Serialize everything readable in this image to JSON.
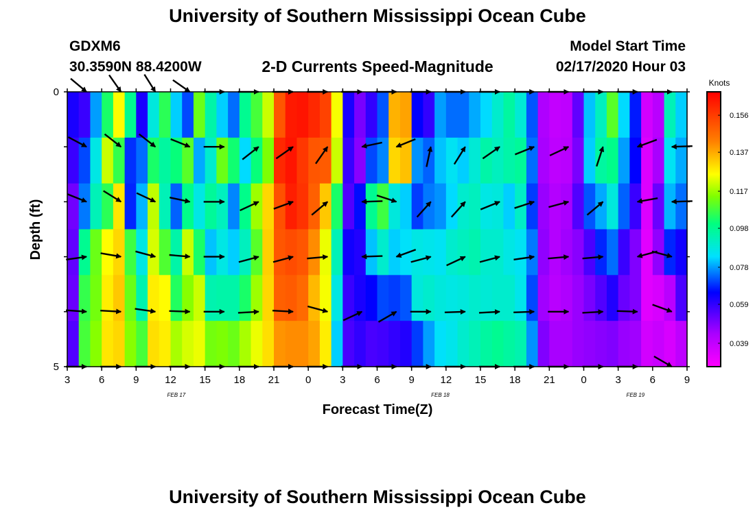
{
  "page": {
    "title_top": "University of Southern Mississippi Ocean Cube",
    "title_bottom": "University of Southern Mississippi Ocean Cube",
    "station_id": "GDXM6",
    "station_coords": "30.3590N 88.4200W",
    "product_title": "2-D Currents Speed-Magnitude",
    "model_start_label": "Model Start Time",
    "model_start_value": "02/17/2020 Hour 03"
  },
  "chart_data": {
    "type": "heatmap",
    "title": "2-D Currents Speed-Magnitude",
    "xlabel": "Forecast Time(Z)",
    "ylabel": "Depth (ft)",
    "x_ticks": [
      "3",
      "6",
      "9",
      "12",
      "15",
      "18",
      "21",
      "0",
      "3",
      "6",
      "9",
      "12",
      "15",
      "18",
      "21",
      "0",
      "3",
      "6",
      "9"
    ],
    "x_range_hours": [
      0,
      54
    ],
    "date_labels": [
      {
        "text": "FEB 17",
        "hour": 9.5
      },
      {
        "text": "FEB 18",
        "hour": 32.5
      },
      {
        "text": "FEB 19",
        "hour": 49.5
      }
    ],
    "y_tick_labels": [
      "0",
      "5"
    ],
    "ylim": [
      0,
      5
    ],
    "depth_bands": 5,
    "colorbar": {
      "label": "Knots",
      "ticks": [
        "0.156",
        "0.137",
        "0.117",
        "0.098",
        "0.078",
        "0.059",
        "0.039"
      ],
      "tick_values": [
        0.156,
        0.137,
        0.117,
        0.098,
        0.078,
        0.059,
        0.039
      ],
      "range": [
        0.027,
        0.168
      ]
    },
    "speed_rows": [
      [
        0.062,
        0.058,
        0.078,
        0.103,
        0.126,
        0.098,
        0.062,
        0.088,
        0.105,
        0.082,
        0.071,
        0.112,
        0.095,
        0.082,
        0.074,
        0.098,
        0.108,
        0.121,
        0.151,
        0.163,
        0.164,
        0.16,
        0.155,
        0.125,
        0.062,
        0.05,
        0.059,
        0.072,
        0.136,
        0.138,
        0.065,
        0.059,
        0.078,
        0.074,
        0.074,
        0.079,
        0.083,
        0.09,
        0.096,
        0.089,
        0.072,
        0.043,
        0.039,
        0.04,
        0.053,
        0.081,
        0.092,
        0.11,
        0.083,
        0.067,
        0.036,
        0.041,
        0.093,
        0.082
      ],
      [
        0.058,
        0.071,
        0.087,
        0.121,
        0.106,
        0.069,
        0.074,
        0.103,
        0.096,
        0.101,
        0.11,
        0.079,
        0.09,
        0.112,
        0.102,
        0.083,
        0.101,
        0.114,
        0.16,
        0.164,
        0.157,
        0.151,
        0.15,
        0.121,
        0.058,
        0.048,
        0.071,
        0.076,
        0.131,
        0.134,
        0.077,
        0.073,
        0.081,
        0.085,
        0.082,
        0.089,
        0.095,
        0.092,
        0.095,
        0.097,
        0.074,
        0.044,
        0.04,
        0.041,
        0.05,
        0.082,
        0.096,
        0.099,
        0.078,
        0.065,
        0.034,
        0.044,
        0.085,
        0.079
      ],
      [
        0.051,
        0.075,
        0.093,
        0.105,
        0.129,
        0.068,
        0.08,
        0.12,
        0.093,
        0.073,
        0.099,
        0.087,
        0.097,
        0.092,
        0.076,
        0.099,
        0.117,
        0.131,
        0.152,
        0.162,
        0.158,
        0.149,
        0.133,
        0.103,
        0.055,
        0.066,
        0.098,
        0.107,
        0.088,
        0.082,
        0.07,
        0.075,
        0.077,
        0.083,
        0.09,
        0.092,
        0.087,
        0.088,
        0.082,
        0.091,
        0.07,
        0.046,
        0.042,
        0.044,
        0.055,
        0.072,
        0.079,
        0.088,
        0.073,
        0.058,
        0.034,
        0.052,
        0.08,
        0.074
      ],
      [
        0.053,
        0.098,
        0.112,
        0.126,
        0.131,
        0.107,
        0.087,
        0.122,
        0.109,
        0.095,
        0.121,
        0.103,
        0.081,
        0.087,
        0.082,
        0.092,
        0.11,
        0.132,
        0.151,
        0.153,
        0.151,
        0.141,
        0.124,
        0.093,
        0.063,
        0.061,
        0.081,
        0.09,
        0.082,
        0.084,
        0.087,
        0.086,
        0.085,
        0.09,
        0.092,
        0.094,
        0.09,
        0.09,
        0.087,
        0.085,
        0.075,
        0.047,
        0.042,
        0.045,
        0.048,
        0.056,
        0.068,
        0.074,
        0.058,
        0.049,
        0.033,
        0.047,
        0.068,
        0.063
      ],
      [
        0.052,
        0.106,
        0.113,
        0.128,
        0.133,
        0.112,
        0.094,
        0.128,
        0.126,
        0.104,
        0.115,
        0.121,
        0.094,
        0.095,
        0.095,
        0.103,
        0.117,
        0.131,
        0.149,
        0.15,
        0.147,
        0.135,
        0.125,
        0.087,
        0.058,
        0.062,
        0.065,
        0.071,
        0.07,
        0.072,
        0.088,
        0.09,
        0.088,
        0.087,
        0.088,
        0.09,
        0.089,
        0.09,
        0.09,
        0.086,
        0.071,
        0.045,
        0.041,
        0.043,
        0.046,
        0.05,
        0.055,
        0.061,
        0.052,
        0.049,
        0.033,
        0.035,
        0.041,
        0.056
      ],
      [
        0.055,
        0.108,
        0.115,
        0.129,
        0.131,
        0.115,
        0.108,
        0.13,
        0.128,
        0.118,
        0.122,
        0.124,
        0.113,
        0.114,
        0.112,
        0.118,
        0.124,
        0.13,
        0.14,
        0.141,
        0.141,
        0.138,
        0.128,
        0.082,
        0.056,
        0.059,
        0.056,
        0.057,
        0.059,
        0.061,
        0.07,
        0.078,
        0.084,
        0.086,
        0.09,
        0.093,
        0.096,
        0.098,
        0.096,
        0.094,
        0.077,
        0.049,
        0.044,
        0.044,
        0.046,
        0.047,
        0.048,
        0.049,
        0.046,
        0.045,
        0.036,
        0.038,
        0.035,
        0.04
      ]
    ],
    "vector_rows_angle_deg": [
      [
        40,
        55,
        58,
        35,
        0,
        0,
        0,
        0,
        0,
        0,
        0,
        0,
        0,
        0,
        0,
        0,
        0,
        0
      ],
      [
        28,
        38,
        38,
        22,
        0,
        -38,
        -35,
        -55,
        168,
        158,
        -78,
        -58,
        -35,
        -22,
        -25,
        -72,
        160,
        178
      ],
      [
        22,
        32,
        25,
        12,
        0,
        -25,
        -20,
        -40,
        178,
        18,
        -48,
        -48,
        -22,
        -18,
        -15,
        -40,
        170,
        178
      ],
      [
        -8,
        10,
        15,
        5,
        0,
        -15,
        -15,
        -5,
        178,
        160,
        -15,
        -25,
        -15,
        -8,
        -5,
        -5,
        165,
        15
      ],
      [
        4,
        3,
        8,
        2,
        0,
        -3,
        3,
        15,
        -25,
        -30,
        0,
        -2,
        -3,
        -2,
        0,
        -3,
        2,
        20
      ],
      [
        0,
        0,
        0,
        0,
        0,
        0,
        0,
        0,
        0,
        0,
        0,
        0,
        0,
        0,
        0,
        0,
        0,
        30
      ]
    ]
  }
}
